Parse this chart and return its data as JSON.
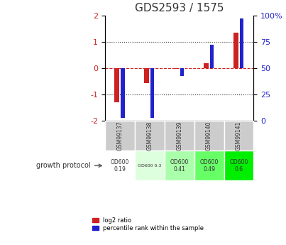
{
  "title": "GDS2593 / 1575",
  "samples": [
    "GSM99137",
    "GSM99138",
    "GSM99139",
    "GSM99140",
    "GSM99141"
  ],
  "log2_ratio": [
    -1.3,
    -0.55,
    -0.02,
    0.18,
    1.35
  ],
  "percentile_rank": [
    3,
    3,
    43,
    72,
    97
  ],
  "ylim_left": [
    -2,
    2
  ],
  "ylim_right": [
    0,
    100
  ],
  "yticks_left": [
    -2,
    -1,
    0,
    1,
    2
  ],
  "yticks_right": [
    0,
    25,
    50,
    75,
    100
  ],
  "bar_color_red": "#cc2222",
  "bar_color_blue": "#2222cc",
  "dotted_line_color": "#333333",
  "zero_line_color": "#cc2222",
  "protocol_labels": [
    "OD600\n0.19",
    "OD600 0.3",
    "OD600\n0.41",
    "OD600\n0.49",
    "OD600\n0.6"
  ],
  "protocol_bg_colors": [
    "#ffffff",
    "#ddffdd",
    "#aaffaa",
    "#66ff66",
    "#00ee00"
  ],
  "sample_bg_color": "#cccccc",
  "legend_red": "log2 ratio",
  "legend_blue": "percentile rank within the sample"
}
